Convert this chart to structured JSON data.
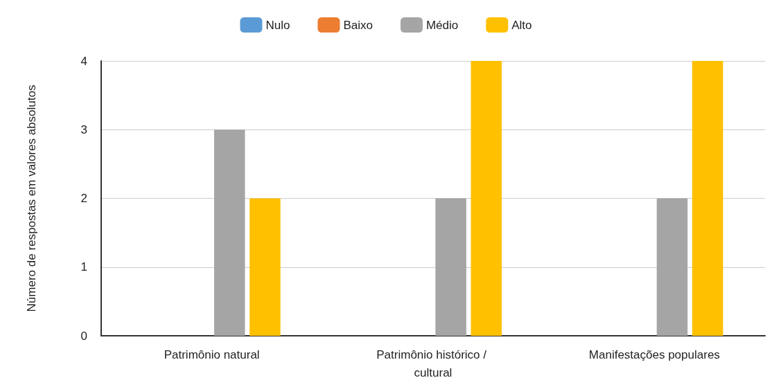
{
  "chart_data": {
    "type": "bar",
    "ylabel": "Número de respostas em valores absolutos",
    "categories": [
      "Patrimônio natural",
      "Patrimônio histórico / cultural",
      "Manifestações populares"
    ],
    "series": [
      {
        "name": "Nulo",
        "color": "#5b9bd5",
        "values": [
          0,
          0,
          0
        ]
      },
      {
        "name": "Baixo",
        "color": "#ed7d31",
        "values": [
          0,
          0,
          0
        ]
      },
      {
        "name": "Médio",
        "color": "#a5a5a5",
        "values": [
          3,
          2,
          2
        ]
      },
      {
        "name": "Alto",
        "color": "#ffc000",
        "values": [
          2,
          4,
          4
        ]
      }
    ],
    "ylim": [
      0,
      4
    ],
    "yticks": [
      0,
      1,
      2,
      3,
      4
    ],
    "grid": "y",
    "legend": "top"
  }
}
